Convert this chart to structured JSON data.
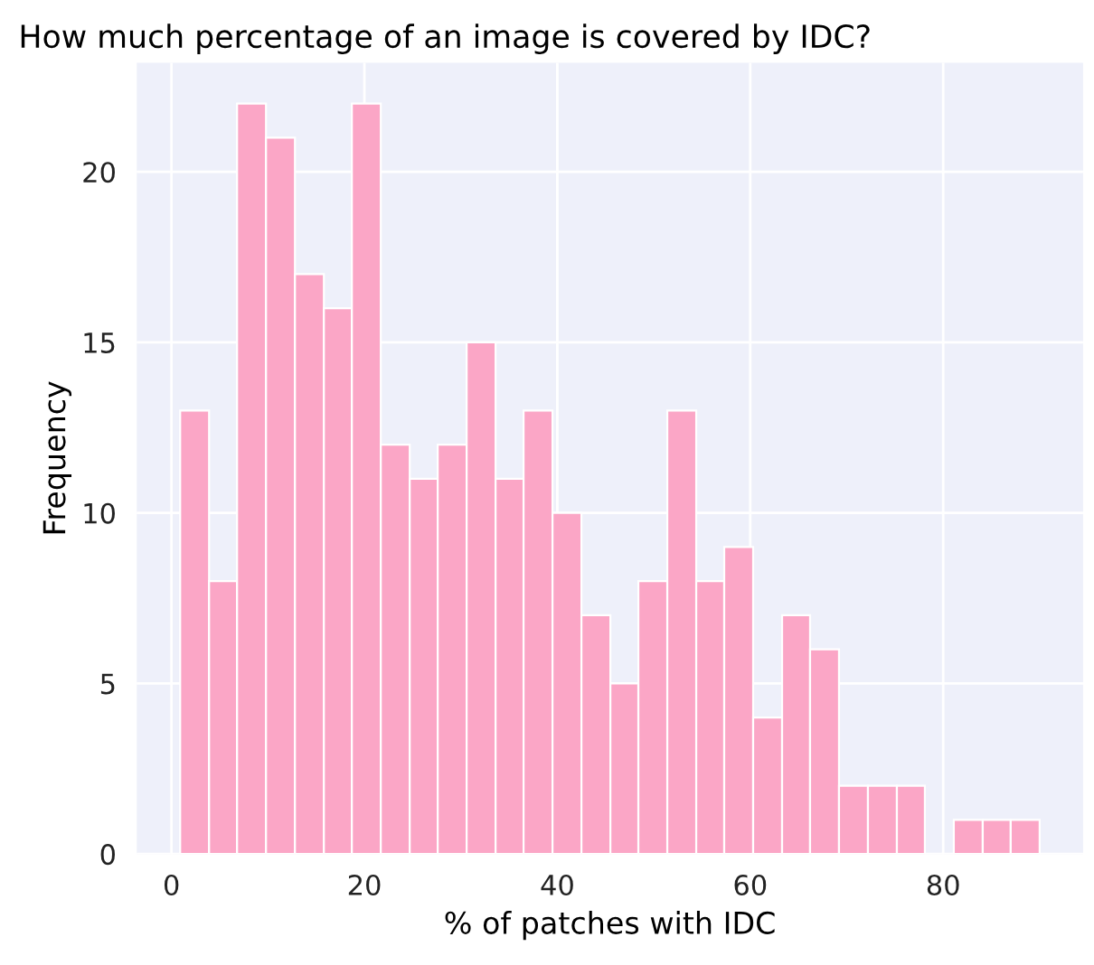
{
  "chart_data": {
    "type": "histogram",
    "title": "How much percentage of an image is covered by IDC?",
    "xlabel": "% of patches with IDC",
    "ylabel": "Frequency",
    "bins": [
      0.9,
      3.9,
      6.8,
      9.8,
      12.8,
      15.8,
      18.7,
      21.7,
      24.7,
      27.6,
      30.6,
      33.6,
      36.5,
      39.5,
      42.5,
      45.5,
      48.4,
      51.4,
      54.4,
      57.3,
      60.3,
      63.3,
      66.2,
      69.2,
      72.2,
      75.2,
      78.1,
      81.1,
      84.1,
      87.0,
      90.0
    ],
    "values": [
      13,
      8,
      22,
      21,
      17,
      16,
      22,
      12,
      11,
      12,
      15,
      11,
      13,
      10,
      7,
      5,
      8,
      13,
      8,
      9,
      4,
      7,
      6,
      2,
      2,
      2,
      0,
      1,
      1,
      1
    ],
    "color": "#fba6c6",
    "xlim": [
      -3.6,
      94.5
    ],
    "ylim": [
      0,
      23.2
    ],
    "xticks": [
      0,
      20,
      40,
      60,
      80
    ],
    "yticks": [
      0,
      5,
      10,
      15,
      20
    ],
    "grid": true
  }
}
